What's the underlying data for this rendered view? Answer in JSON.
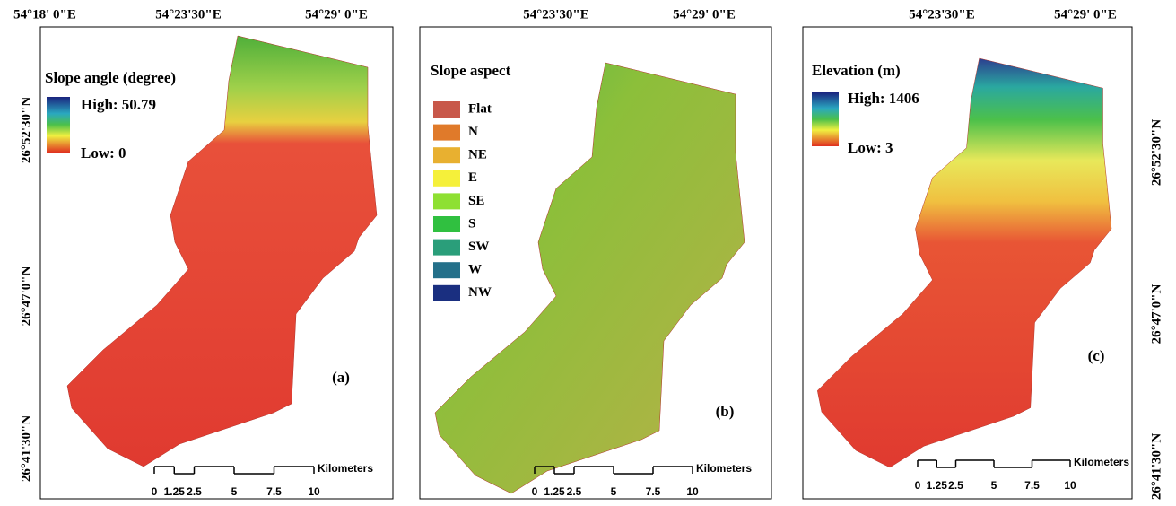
{
  "panels": [
    {
      "letter": "(a)",
      "top_labels": [
        "54°18' 0\"E",
        "54°23'30\"E",
        "54°29' 0\"E"
      ],
      "side_labels": [
        "26°52'30\"N",
        "26°47'0\"N",
        "26°41'30\"N"
      ],
      "legend": {
        "title": "Slope angle (degree)",
        "high": "High: 50.79",
        "low": "Low: 0"
      },
      "scale": {
        "ticks": [
          "0",
          "1.25",
          "2.5",
          "5",
          "7.5",
          "10"
        ],
        "unit": "Kilometers"
      }
    },
    {
      "letter": "(b)",
      "top_labels": [
        "54°23'30\"E",
        "54°29' 0\"E"
      ],
      "legend": {
        "title": "Slope aspect",
        "items": [
          {
            "label": "Flat",
            "color": "#c8584a"
          },
          {
            "label": "N",
            "color": "#e07a2a"
          },
          {
            "label": "NE",
            "color": "#e8b030"
          },
          {
            "label": "E",
            "color": "#f5f03a"
          },
          {
            "label": "SE",
            "color": "#8ee032"
          },
          {
            "label": "S",
            "color": "#30c040"
          },
          {
            "label": "SW",
            "color": "#2a9e7a"
          },
          {
            "label": "W",
            "color": "#24708a"
          },
          {
            "label": "NW",
            "color": "#1a2f80"
          }
        ]
      },
      "scale": {
        "ticks": [
          "0",
          "1.25",
          "2.5",
          "5",
          "7.5",
          "10"
        ],
        "unit": "Kilometers"
      }
    },
    {
      "letter": "(c)",
      "top_labels": [
        "54°23'30\"E",
        "54°29' 0\"E"
      ],
      "side_labels": [
        "26°52'30\"N",
        "26°47'0\"N",
        "26°41'30\"N"
      ],
      "legend": {
        "title": "Elevation (m)",
        "high": "High: 1406",
        "low": "Low: 3"
      },
      "scale": {
        "ticks": [
          "0",
          "1.25",
          "2.5",
          "5",
          "7.5",
          "10"
        ],
        "unit": "Kilometers"
      }
    }
  ]
}
